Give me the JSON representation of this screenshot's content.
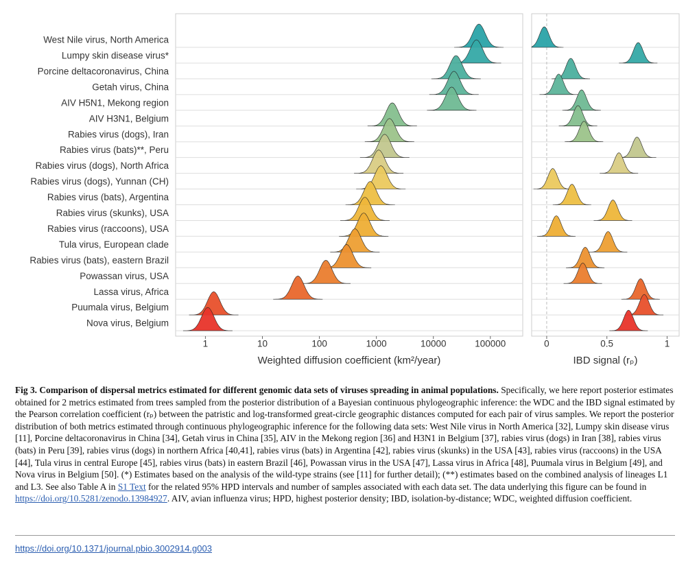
{
  "chart_data": [
    {
      "type": "ridgeline",
      "xlabel": "Weighted diffusion coefficient (km²/year)",
      "xscale": "log",
      "categories": [
        "West Nile virus, North America",
        "Lumpy skin disease virus*",
        "Porcine deltacoronavirus, China",
        "Getah virus, China",
        "AIV H5N1, Mekong region",
        "AIV H3N1, Belgium",
        "Rabies virus (dogs), Iran",
        "Rabies virus (bats)**, Peru",
        "Rabies virus (dogs), North Africa",
        "Rabies virus (dogs), Yunnan (CH)",
        "Rabies virus (bats), Argentina",
        "Rabies virus (skunks), USA",
        "Rabies virus (raccoons), USA",
        "Tula virus, European clade",
        "Rabies virus (bats), eastern Brazil",
        "Powassan virus, USA",
        "Lassa virus, Africa",
        "Puumala virus, Belgium",
        "Nova virus, Belgium"
      ],
      "values": [
        63000,
        57000,
        25000,
        23000,
        21000,
        1900,
        1700,
        1400,
        1100,
        1200,
        780,
        630,
        600,
        420,
        300,
        130,
        42,
        1.4,
        1.1
      ],
      "colors": [
        "#2aa3a8",
        "#35a9a6",
        "#4caf9e",
        "#5db49a",
        "#6fb994",
        "#85bf8e",
        "#9cc38a",
        "#c2c78e",
        "#d9cc84",
        "#ebc95e",
        "#edbf43",
        "#eeb63a",
        "#eeae35",
        "#ed9f33",
        "#ec9130",
        "#ea7d2e",
        "#e9672c",
        "#e8502b",
        "#e8342a"
      ],
      "xlim": [
        0.3,
        370000
      ],
      "xticks": [
        1,
        10,
        100,
        1000,
        10000,
        100000
      ],
      "grid": true
    },
    {
      "type": "ridgeline",
      "xlabel": "IBD signal (rₚ)",
      "values": [
        -0.02,
        0.76,
        0.2,
        0.1,
        0.29,
        0.26,
        0.31,
        0.75,
        0.6,
        0.05,
        0.21,
        0.55,
        0.08,
        0.51,
        0.32,
        0.3,
        0.78,
        0.81,
        0.68
      ],
      "xlim": [
        -0.125,
        1.1
      ],
      "xticks": [
        0,
        0.5,
        1
      ],
      "grid": true
    }
  ],
  "caption": {
    "title": "Fig 3. Comparison of dispersal metrics estimated for different genomic data sets of viruses spreading in animal populations.",
    "segments": [
      {
        "text": " Specifically, we here report posterior estimates obtained for 2 metrics estimated from trees sampled from the posterior distribution of a Bayesian continuous phylogeographic inference: the WDC and the IBD signal estimated by the Pearson correlation coefficient (rₚ) between the patristic and log-transformed great-circle geographic distances computed for each pair of virus samples. We report the posterior distribution of both metrics estimated through continuous phylogeographic inference for the following data sets: West Nile virus in North America [32], Lumpy skin disease virus [11], Porcine deltacoronavirus in China [34], Getah virus in China [35], AIV in the Mekong region [36] and H3N1 in Belgium [37], rabies virus (dogs) in Iran [38], rabies virus (bats) in Peru [39], rabies virus (dogs) in northern Africa [40,41], rabies virus (bats) in Argentina [42], rabies virus (skunks) in the USA [43], rabies virus (raccoons) in the USA [44], Tula virus in central Europe [45], rabies virus (bats) in eastern Brazil [46], Powassan virus in the USA [47], Lassa virus in Africa [48], Puumala virus in Belgium [49], and Nova virus in Belgium [50]. (*) Estimates based on the analysis of the wild-type strains (see [11] for further detail); (**) estimates based on the combined analysis of lineages L1 and L3. See also Table A in ",
        "link": false
      },
      {
        "text": "S1 Text",
        "link": true
      },
      {
        "text": " for the related 95% HPD intervals and number of samples associated with each data set. The data underlying this figure can be found in ",
        "link": false
      },
      {
        "text": "https://doi.org/10.5281/zenodo.13984927",
        "link": true
      },
      {
        "text": ". AIV, avian influenza virus; HPD, highest posterior density; IBD, isolation-by-distance; WDC, weighted diffusion coefficient.",
        "link": false
      }
    ]
  },
  "doi": "https://doi.org/10.1371/journal.pbio.3002914.g003"
}
